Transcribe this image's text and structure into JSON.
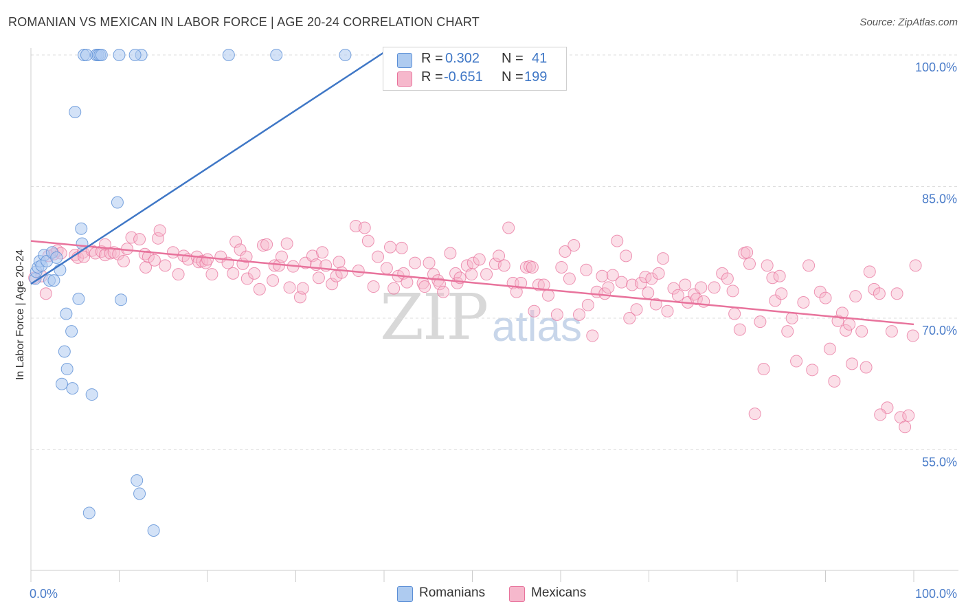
{
  "title": "ROMANIAN VS MEXICAN IN LABOR FORCE | AGE 20-24 CORRELATION CHART",
  "source": "Source: ZipAtlas.com",
  "watermark": {
    "zip": "ZIP",
    "atlas": "atlas"
  },
  "legend": {
    "romanians": {
      "r_label": "R =",
      "r_value": "0.302",
      "n_label": "N =",
      "n_value": "41",
      "color": "#aecbf0"
    },
    "mexicans": {
      "r_label": "R =",
      "r_value": "-0.651",
      "n_label": "N =",
      "n_value": "199",
      "color": "#f6b8cc"
    }
  },
  "bottom_legend": {
    "romanians": "Romanians",
    "mexicans": "Mexicans"
  },
  "colors": {
    "blue": "#5b8fd6",
    "blue_fill": "#aecbf0",
    "pink": "#e8739c",
    "pink_fill": "#f6b8cc",
    "tick": "#4a7cc9"
  },
  "chart_data": {
    "type": "scatter",
    "title": "ROMANIAN VS MEXICAN IN LABOR FORCE | AGE 20-24 CORRELATION CHART",
    "xlabel": "",
    "ylabel": "In Labor Force | Age 20-24",
    "xlim": [
      0,
      100
    ],
    "ylim": [
      41.5,
      102
    ],
    "x_tick_labels": [
      "0.0%",
      "100.0%"
    ],
    "y_ticks": [
      55,
      70,
      85,
      100
    ],
    "y_tick_labels": [
      "55.0%",
      "70.0%",
      "85.0%",
      "100.0%"
    ],
    "grid": true,
    "series": [
      {
        "name": "Romanians",
        "R": 0.302,
        "N": 41,
        "trend": {
          "x": [
            0,
            40.3
          ],
          "y": [
            73.9,
            100.5
          ]
        },
        "points": [
          [
            0.5,
            74.5
          ],
          [
            0.6,
            75.3
          ],
          [
            0.8,
            75.8
          ],
          [
            1.0,
            76.5
          ],
          [
            1.2,
            76.0
          ],
          [
            1.5,
            77.2
          ],
          [
            1.8,
            76.5
          ],
          [
            2.1,
            74.3
          ],
          [
            2.4,
            77.5
          ],
          [
            2.6,
            74.3
          ],
          [
            2.9,
            76.9
          ],
          [
            3.3,
            75.5
          ],
          [
            3.5,
            62.5
          ],
          [
            3.8,
            66.2
          ],
          [
            4.0,
            70.5
          ],
          [
            4.1,
            64.2
          ],
          [
            4.6,
            68.5
          ],
          [
            4.7,
            62.0
          ],
          [
            5.0,
            93.5
          ],
          [
            5.4,
            72.2
          ],
          [
            5.7,
            80.2
          ],
          [
            5.8,
            78.5
          ],
          [
            6.0,
            100.0
          ],
          [
            6.3,
            100.0
          ],
          [
            6.6,
            47.8
          ],
          [
            6.9,
            61.3
          ],
          [
            7.4,
            100.0
          ],
          [
            7.6,
            100.0
          ],
          [
            7.8,
            100.0
          ],
          [
            8.0,
            100.0
          ],
          [
            9.8,
            83.2
          ],
          [
            10.2,
            72.1
          ],
          [
            12.0,
            51.5
          ],
          [
            12.3,
            50.0
          ],
          [
            12.5,
            100.0
          ],
          [
            13.9,
            45.8
          ],
          [
            10.0,
            100.0
          ],
          [
            11.8,
            100.0
          ],
          [
            22.4,
            100.0
          ],
          [
            27.8,
            100.0
          ],
          [
            35.6,
            100.0
          ]
        ]
      },
      {
        "name": "Mexicans",
        "R": -0.651,
        "N": 199,
        "trend": {
          "x": [
            0,
            100
          ],
          "y": [
            78.8,
            69.3
          ]
        },
        "points": [
          [
            0.4,
            74.6
          ],
          [
            1.2,
            74.8
          ],
          [
            1.7,
            72.8
          ],
          [
            2.0,
            77.1
          ],
          [
            2.6,
            77.3
          ],
          [
            3.0,
            77.7
          ],
          [
            3.4,
            77.4
          ],
          [
            5.0,
            77.2
          ],
          [
            5.3,
            76.9
          ],
          [
            5.9,
            77.5
          ],
          [
            6.0,
            77.0
          ],
          [
            6.9,
            77.7
          ],
          [
            7.3,
            77.4
          ],
          [
            8.0,
            77.6
          ],
          [
            8.4,
            78.4
          ],
          [
            8.4,
            77.2
          ],
          [
            9.0,
            77.4
          ],
          [
            9.4,
            77.5
          ],
          [
            9.9,
            77.3
          ],
          [
            10.5,
            76.5
          ],
          [
            10.9,
            77.9
          ],
          [
            11.4,
            79.2
          ],
          [
            12.3,
            79.0
          ],
          [
            12.9,
            77.3
          ],
          [
            13.0,
            75.8
          ],
          [
            13.3,
            77.0
          ],
          [
            14.0,
            76.6
          ],
          [
            14.4,
            79.1
          ],
          [
            14.6,
            80.0
          ],
          [
            15.2,
            76.0
          ],
          [
            16.1,
            77.5
          ],
          [
            16.7,
            75.0
          ],
          [
            17.3,
            77.1
          ],
          [
            17.8,
            76.7
          ],
          [
            18.8,
            77.0
          ],
          [
            19.0,
            76.4
          ],
          [
            19.4,
            76.5
          ],
          [
            19.8,
            76.3
          ],
          [
            20.0,
            76.7
          ],
          [
            20.5,
            75.0
          ],
          [
            21.5,
            77.0
          ],
          [
            22.3,
            76.3
          ],
          [
            22.9,
            75.1
          ],
          [
            23.2,
            78.7
          ],
          [
            23.7,
            77.8
          ],
          [
            24.0,
            76.2
          ],
          [
            24.4,
            77.0
          ],
          [
            24.5,
            74.5
          ],
          [
            25.3,
            75.1
          ],
          [
            25.9,
            73.3
          ],
          [
            26.3,
            78.3
          ],
          [
            26.7,
            78.4
          ],
          [
            27.4,
            74.3
          ],
          [
            27.6,
            76.0
          ],
          [
            28.1,
            76.0
          ],
          [
            28.4,
            77.0
          ],
          [
            29.0,
            78.5
          ],
          [
            29.3,
            73.5
          ],
          [
            29.7,
            75.9
          ],
          [
            30.5,
            72.4
          ],
          [
            30.8,
            73.4
          ],
          [
            31.1,
            76.3
          ],
          [
            31.9,
            77.1
          ],
          [
            32.3,
            76.1
          ],
          [
            32.6,
            74.6
          ],
          [
            33.0,
            77.5
          ],
          [
            33.4,
            76.0
          ],
          [
            34.1,
            73.9
          ],
          [
            34.6,
            74.8
          ],
          [
            34.9,
            76.4
          ],
          [
            35.2,
            75.2
          ],
          [
            36.8,
            80.5
          ],
          [
            37.1,
            75.4
          ],
          [
            37.8,
            80.3
          ],
          [
            38.2,
            78.8
          ],
          [
            38.8,
            73.6
          ],
          [
            39.3,
            77.0
          ],
          [
            40.3,
            75.7
          ],
          [
            40.7,
            78.1
          ],
          [
            41.1,
            73.4
          ],
          [
            41.6,
            74.8
          ],
          [
            42.0,
            78.0
          ],
          [
            42.2,
            75.1
          ],
          [
            42.6,
            74.1
          ],
          [
            43.5,
            76.3
          ],
          [
            44.4,
            74.0
          ],
          [
            44.6,
            73.6
          ],
          [
            45.1,
            76.3
          ],
          [
            45.6,
            75.0
          ],
          [
            46.1,
            74.3
          ],
          [
            46.3,
            73.9
          ],
          [
            46.7,
            73.0
          ],
          [
            47.5,
            77.4
          ],
          [
            48.1,
            75.1
          ],
          [
            48.3,
            74.0
          ],
          [
            48.6,
            74.6
          ],
          [
            49.4,
            76.0
          ],
          [
            49.9,
            75.0
          ],
          [
            50.1,
            76.3
          ],
          [
            50.8,
            76.7
          ],
          [
            51.6,
            75.0
          ],
          [
            52.6,
            76.2
          ],
          [
            53.0,
            77.1
          ],
          [
            53.6,
            76.0
          ],
          [
            54.1,
            80.3
          ],
          [
            54.6,
            74.0
          ],
          [
            55.0,
            73.0
          ],
          [
            55.5,
            74.0
          ],
          [
            56.1,
            75.8
          ],
          [
            56.5,
            75.9
          ],
          [
            56.8,
            75.8
          ],
          [
            57.0,
            70.8
          ],
          [
            57.5,
            73.8
          ],
          [
            58.1,
            73.8
          ],
          [
            58.6,
            72.6
          ],
          [
            59.6,
            70.4
          ],
          [
            60.1,
            75.8
          ],
          [
            60.5,
            77.6
          ],
          [
            61.0,
            74.5
          ],
          [
            61.5,
            78.3
          ],
          [
            62.1,
            70.4
          ],
          [
            62.9,
            75.5
          ],
          [
            63.1,
            71.5
          ],
          [
            63.6,
            68.0
          ],
          [
            64.1,
            73.0
          ],
          [
            64.7,
            74.8
          ],
          [
            65.0,
            72.8
          ],
          [
            65.4,
            73.5
          ],
          [
            65.9,
            74.9
          ],
          [
            66.4,
            78.8
          ],
          [
            66.9,
            74.1
          ],
          [
            67.4,
            77.1
          ],
          [
            67.8,
            70.0
          ],
          [
            68.1,
            73.8
          ],
          [
            68.6,
            71.0
          ],
          [
            69.1,
            74.0
          ],
          [
            69.6,
            74.7
          ],
          [
            69.9,
            72.9
          ],
          [
            70.3,
            74.5
          ],
          [
            70.8,
            71.6
          ],
          [
            71.1,
            75.1
          ],
          [
            71.6,
            76.8
          ],
          [
            72.1,
            70.8
          ],
          [
            72.8,
            73.4
          ],
          [
            73.3,
            72.6
          ],
          [
            74.1,
            73.8
          ],
          [
            74.4,
            71.8
          ],
          [
            75.1,
            72.7
          ],
          [
            75.4,
            72.2
          ],
          [
            75.9,
            73.5
          ],
          [
            76.2,
            71.9
          ],
          [
            77.4,
            73.5
          ],
          [
            78.3,
            75.1
          ],
          [
            78.9,
            74.5
          ],
          [
            79.5,
            73.1
          ],
          [
            79.7,
            70.5
          ],
          [
            80.3,
            68.7
          ],
          [
            80.8,
            77.4
          ],
          [
            81.1,
            77.5
          ],
          [
            81.4,
            76.2
          ],
          [
            82.0,
            59.1
          ],
          [
            82.6,
            69.6
          ],
          [
            83.0,
            64.2
          ],
          [
            83.4,
            76.0
          ],
          [
            84.0,
            74.6
          ],
          [
            84.3,
            72.0
          ],
          [
            84.8,
            74.8
          ],
          [
            85.0,
            72.8
          ],
          [
            85.7,
            68.5
          ],
          [
            86.2,
            70.0
          ],
          [
            86.7,
            65.1
          ],
          [
            87.5,
            71.8
          ],
          [
            88.1,
            76.0
          ],
          [
            88.5,
            64.1
          ],
          [
            89.4,
            73.0
          ],
          [
            90.0,
            72.3
          ],
          [
            90.5,
            66.5
          ],
          [
            91.0,
            62.8
          ],
          [
            91.4,
            69.7
          ],
          [
            91.9,
            70.6
          ],
          [
            92.3,
            68.6
          ],
          [
            92.7,
            69.3
          ],
          [
            93.0,
            64.8
          ],
          [
            93.4,
            72.5
          ],
          [
            94.1,
            68.5
          ],
          [
            94.6,
            64.4
          ],
          [
            95.0,
            75.3
          ],
          [
            95.5,
            73.3
          ],
          [
            96.1,
            72.8
          ],
          [
            97.0,
            59.8
          ],
          [
            96.2,
            59.0
          ],
          [
            97.5,
            68.5
          ],
          [
            98.1,
            72.8
          ],
          [
            98.5,
            58.7
          ],
          [
            99.0,
            57.6
          ],
          [
            99.4,
            58.9
          ],
          [
            99.9,
            68.0
          ],
          [
            100.2,
            76.0
          ]
        ]
      }
    ]
  }
}
